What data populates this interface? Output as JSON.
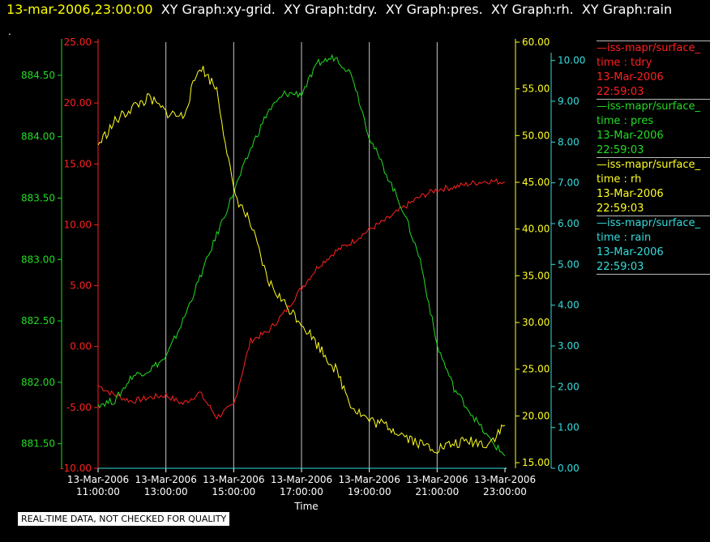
{
  "header": {
    "timestamp": "13-mar-2006,23:00:00",
    "graph_labels": [
      "XY Graph:xy-grid.",
      "XY Graph:tdry.",
      "XY Graph:pres.",
      "XY Graph:rh.",
      "XY Graph:rain"
    ]
  },
  "corner_mark": ".",
  "disclaimer": "REAL-TIME DATA, NOT CHECKED FOR QUALITY",
  "colors": {
    "tdry": "#ff2020",
    "pres": "#22dd22",
    "rh": "#ffff22",
    "rain": "#33dddd",
    "grid": "#c8c8c8"
  },
  "legend": [
    {
      "series": "iss-mapr/surface_",
      "var": "time : tdry",
      "date": "13-Mar-2006",
      "time": "22:59:03",
      "color": "#ff2020"
    },
    {
      "series": "iss-mapr/surface_",
      "var": "time : pres",
      "date": "13-Mar-2006",
      "time": "22:59:03",
      "color": "#22dd22"
    },
    {
      "series": "iss-mapr/surface_",
      "var": "time : rh",
      "date": "13-Mar-2006",
      "time": "22:59:03",
      "color": "#ffff22"
    },
    {
      "series": "iss-mapr/surface_",
      "var": "time : rain",
      "date": "13-Mar-2006",
      "time": "22:59:03",
      "color": "#33dddd"
    }
  ],
  "chart_data": {
    "type": "line",
    "xlabel": "Time",
    "x_ticks": [
      {
        "date": "13-Mar-2006",
        "time": "11:00:00"
      },
      {
        "date": "13-Mar-2006",
        "time": "13:00:00"
      },
      {
        "date": "13-Mar-2006",
        "time": "15:00:00"
      },
      {
        "date": "13-Mar-2006",
        "time": "17:00:00"
      },
      {
        "date": "13-Mar-2006",
        "time": "19:00:00"
      },
      {
        "date": "13-Mar-2006",
        "time": "21:00:00"
      },
      {
        "date": "13-Mar-2006",
        "time": "23:00:00"
      }
    ],
    "xlim": [
      "13-Mar-2006 11:00:00",
      "13-Mar-2006 23:00:00"
    ],
    "grid": "vertical",
    "axes": {
      "pres": {
        "range": [
          881.3,
          884.77
        ],
        "ticks": [
          "881.50",
          "882.00",
          "882.50",
          "883.00",
          "883.50",
          "884.00",
          "884.50"
        ]
      },
      "tdry": {
        "range": [
          -10,
          25
        ],
        "ticks": [
          "-10.00",
          "-5.00",
          "0.00",
          "5.00",
          "10.00",
          "15.00",
          "20.00",
          "25.00"
        ]
      },
      "rh": {
        "range": [
          14.4,
          60
        ],
        "ticks": [
          "15.00",
          "20.00",
          "25.00",
          "30.00",
          "35.00",
          "40.00",
          "45.00",
          "50.00",
          "55.00",
          "60.00"
        ]
      },
      "rain": {
        "range": [
          0,
          10.45
        ],
        "ticks": [
          "0.00",
          "1.00",
          "2.00",
          "3.00",
          "4.00",
          "5.00",
          "6.00",
          "7.00",
          "8.00",
          "9.00",
          "10.00"
        ]
      }
    },
    "series": [
      {
        "name": "time : tdry",
        "x": [
          "11:00",
          "11:30",
          "12:00",
          "12:30",
          "13:00",
          "13:30",
          "14:00",
          "14:30",
          "15:00",
          "15:30",
          "16:00",
          "16:30",
          "17:00",
          "17:30",
          "18:00",
          "18:30",
          "19:00",
          "19:30",
          "20:00",
          "20:30",
          "21:00",
          "21:30",
          "22:00",
          "22:30",
          "23:00"
        ],
        "values": [
          -3.2,
          -4.0,
          -4.5,
          -4.2,
          -4.0,
          -4.7,
          -3.8,
          -5.8,
          -4.8,
          0.5,
          1.2,
          2.8,
          4.8,
          6.6,
          7.8,
          8.6,
          9.6,
          10.4,
          11.4,
          12.3,
          12.9,
          13.1,
          13.4,
          13.6,
          13.5
        ]
      },
      {
        "name": "time : pres",
        "x": [
          "11:00",
          "11:30",
          "12:00",
          "12:30",
          "13:00",
          "13:30",
          "14:00",
          "14:30",
          "15:00",
          "15:30",
          "16:00",
          "16:30",
          "17:00",
          "17:30",
          "18:00",
          "18:30",
          "19:00",
          "19:30",
          "20:00",
          "20:30",
          "21:00",
          "21:30",
          "22:00",
          "22:30",
          "23:00"
        ],
        "values": [
          881.82,
          881.85,
          882.05,
          882.1,
          882.2,
          882.5,
          882.85,
          883.2,
          883.55,
          883.9,
          884.2,
          884.35,
          884.35,
          884.6,
          884.65,
          884.5,
          884.0,
          883.7,
          883.4,
          883.0,
          882.3,
          881.95,
          881.75,
          881.55,
          881.4
        ]
      },
      {
        "name": "time : rh",
        "x": [
          "11:00",
          "11:30",
          "12:00",
          "12:30",
          "13:00",
          "13:30",
          "14:00",
          "14:30",
          "15:00",
          "15:30",
          "16:00",
          "16:30",
          "17:00",
          "17:30",
          "18:00",
          "18:30",
          "19:00",
          "19:30",
          "20:00",
          "20:30",
          "21:00",
          "21:30",
          "22:00",
          "22:30",
          "23:00"
        ],
        "values": [
          49.0,
          51.5,
          53.0,
          54.0,
          52.5,
          52.0,
          57.5,
          55.0,
          44.0,
          40.5,
          34.5,
          32.0,
          30.0,
          27.5,
          25.0,
          21.0,
          19.5,
          19.0,
          18.0,
          17.0,
          16.5,
          17.0,
          17.3,
          17.0,
          19.0
        ]
      },
      {
        "name": "time : rain",
        "x": [
          "11:00",
          "23:00"
        ],
        "values": [
          0.0,
          0.0
        ]
      }
    ]
  }
}
